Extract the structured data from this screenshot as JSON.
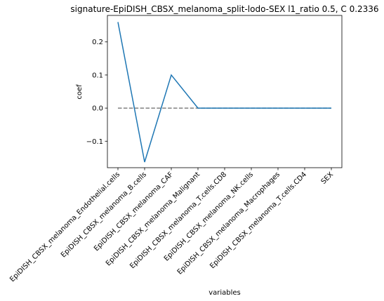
{
  "chart_data": {
    "type": "line",
    "title": "signature-EpiDISH_CBSX_melanoma_split-lodo-SEX l1_ratio 0.5, C 0.2336",
    "xlabel": "variables",
    "ylabel": "coef",
    "categories": [
      "EpiDISH_CBSX_melanoma_Endothelial.cells",
      "EpiDISH_CBSX_melanoma_B.cells",
      "EpiDISH_CBSX_melanoma_CAF",
      "EpiDISH_CBSX_melanoma_Malignant",
      "EpiDISH_CBSX_melanoma_T.cells.CD8",
      "EpiDISH_CBSX_melanoma_NK.cells",
      "EpiDISH_CBSX_melanoma_Macrophages",
      "EpiDISH_CBSX_melanoma_T.cells.CD4",
      "SEX"
    ],
    "series": [
      {
        "values": [
          0.26,
          -0.163,
          0.1,
          0.0,
          0.0,
          0.0,
          0.0,
          0.0,
          0.0
        ],
        "color": "#1f77b4"
      }
    ],
    "baseline": {
      "value": 0.0,
      "style": "dashed",
      "color": "#808080"
    },
    "ylim": [
      -0.18,
      0.28
    ],
    "yticks": [
      -0.1,
      0.0,
      0.1,
      0.2
    ],
    "ytick_labels": [
      "−0.1",
      "0.0",
      "0.1",
      "0.2"
    ],
    "grid": false
  }
}
